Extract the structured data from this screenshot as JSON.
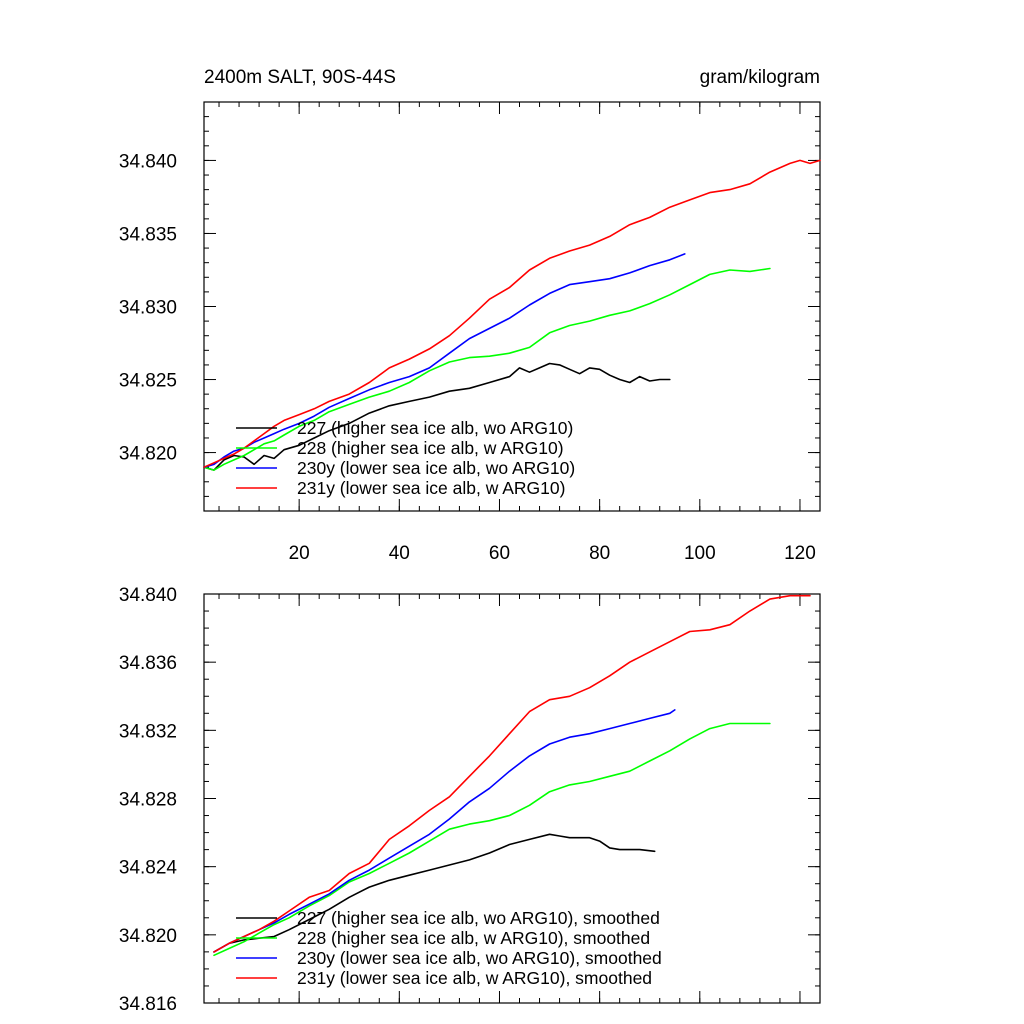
{
  "chart_data": [
    {
      "type": "line",
      "title_left": "2400m SALT, 90S-44S",
      "title_right": "gram/kilogram",
      "xlim": [
        1,
        124
      ],
      "ylim": [
        34.816,
        34.844
      ],
      "x_major_ticks": [
        20,
        40,
        60,
        80,
        100,
        120
      ],
      "x_tick_labels": [
        "20",
        "40",
        "60",
        "80",
        "100",
        "120"
      ],
      "y_major_ticks": [
        34.82,
        34.825,
        34.83,
        34.835,
        34.84
      ],
      "y_tick_labels": [
        "34.820",
        "34.825",
        "34.830",
        "34.835",
        "34.840"
      ],
      "x_minor_step": 4,
      "y_minor_step": 0.001,
      "legend_position": "bottom-left",
      "series": [
        {
          "name": "227 (higher sea ice alb, wo ARG10)",
          "color": "#000000",
          "x": [
            1,
            3,
            5,
            7,
            9,
            11,
            13,
            15,
            17,
            20,
            23,
            26,
            30,
            34,
            38,
            42,
            46,
            50,
            54,
            58,
            62,
            64,
            66,
            68,
            70,
            72,
            74,
            76,
            78,
            80,
            82,
            84,
            86,
            88,
            90,
            92,
            94
          ],
          "y": [
            34.819,
            34.8188,
            34.8195,
            34.8198,
            34.8197,
            34.8192,
            34.8198,
            34.8196,
            34.8202,
            34.8205,
            34.821,
            34.8215,
            34.822,
            34.8227,
            34.8232,
            34.8235,
            34.8238,
            34.8242,
            34.8244,
            34.8248,
            34.8252,
            34.8258,
            34.8255,
            34.8258,
            34.8261,
            34.826,
            34.8257,
            34.8254,
            34.8258,
            34.8257,
            34.8253,
            34.825,
            34.8248,
            34.8252,
            34.8249,
            34.825,
            34.825
          ]
        },
        {
          "name": "228 (higher sea ice alb, w ARG10)",
          "color": "#00ff00",
          "x": [
            1,
            3,
            5,
            7,
            9,
            11,
            13,
            15,
            17,
            20,
            23,
            26,
            30,
            34,
            38,
            42,
            46,
            50,
            54,
            58,
            62,
            66,
            70,
            74,
            78,
            82,
            86,
            90,
            94,
            98,
            102,
            106,
            110,
            114
          ],
          "y": [
            34.819,
            34.8188,
            34.8192,
            34.8195,
            34.8198,
            34.8202,
            34.8206,
            34.8208,
            34.8212,
            34.8218,
            34.8222,
            34.8228,
            34.8233,
            34.8238,
            34.8242,
            34.8248,
            34.8256,
            34.8262,
            34.8265,
            34.8266,
            34.8268,
            34.8272,
            34.8282,
            34.8287,
            34.829,
            34.8294,
            34.8297,
            34.8302,
            34.8308,
            34.8315,
            34.8322,
            34.8325,
            34.8324,
            34.8326
          ]
        },
        {
          "name": "230y (lower sea ice alb, wo ARG10)",
          "color": "#0000ff",
          "x": [
            1,
            3,
            5,
            7,
            9,
            11,
            13,
            15,
            17,
            20,
            23,
            26,
            30,
            34,
            38,
            42,
            46,
            50,
            54,
            58,
            62,
            66,
            70,
            74,
            78,
            82,
            86,
            90,
            94,
            97
          ],
          "y": [
            34.819,
            34.8192,
            34.8197,
            34.8201,
            34.8203,
            34.8207,
            34.821,
            34.8213,
            34.8216,
            34.822,
            34.8225,
            34.8231,
            34.8237,
            34.8243,
            34.8248,
            34.8252,
            34.8258,
            34.8268,
            34.8278,
            34.8285,
            34.8292,
            34.8301,
            34.8309,
            34.8315,
            34.8317,
            34.8319,
            34.8323,
            34.8328,
            34.8332,
            34.8336
          ]
        },
        {
          "name": "231y (lower sea ice alb, w ARG10)",
          "color": "#ff0000",
          "x": [
            1,
            3,
            5,
            7,
            9,
            11,
            13,
            15,
            17,
            20,
            23,
            26,
            30,
            34,
            38,
            42,
            46,
            50,
            54,
            58,
            62,
            66,
            70,
            74,
            78,
            82,
            86,
            90,
            94,
            98,
            102,
            106,
            110,
            114,
            118,
            120,
            122,
            124
          ],
          "y": [
            34.819,
            34.8193,
            34.8196,
            34.8199,
            34.8203,
            34.8208,
            34.8213,
            34.8218,
            34.8222,
            34.8226,
            34.823,
            34.8235,
            34.824,
            34.8248,
            34.8258,
            34.8264,
            34.8271,
            34.828,
            34.8292,
            34.8305,
            34.8313,
            34.8325,
            34.8333,
            34.8338,
            34.8342,
            34.8348,
            34.8356,
            34.8361,
            34.8368,
            34.8373,
            34.8378,
            34.838,
            34.8384,
            34.8392,
            34.8398,
            34.84,
            34.8398,
            34.84
          ]
        }
      ]
    },
    {
      "type": "line",
      "xlim": [
        1,
        124
      ],
      "ylim": [
        34.816,
        34.84
      ],
      "x_major_ticks": [
        20,
        40,
        60,
        80,
        100,
        120
      ],
      "y_major_ticks": [
        34.816,
        34.82,
        34.824,
        34.828,
        34.832,
        34.836,
        34.84
      ],
      "y_tick_labels": [
        "34.816",
        "34.820",
        "34.824",
        "34.828",
        "34.832",
        "34.836",
        "34.840"
      ],
      "x_minor_step": 4,
      "y_minor_step": 0.001,
      "legend_position": "bottom-left",
      "series": [
        {
          "name": "227 (higher sea ice alb, wo ARG10), smoothed",
          "color": "#000000",
          "x": [
            3,
            6,
            9,
            12,
            15,
            18,
            22,
            26,
            30,
            34,
            38,
            42,
            46,
            50,
            54,
            58,
            62,
            66,
            70,
            72,
            74,
            76,
            78,
            80,
            82,
            84,
            86,
            88,
            91
          ],
          "y": [
            34.819,
            34.8195,
            34.8197,
            34.8198,
            34.8199,
            34.8203,
            34.8209,
            34.8215,
            34.8222,
            34.8228,
            34.8232,
            34.8235,
            34.8238,
            34.8241,
            34.8244,
            34.8248,
            34.8253,
            34.8256,
            34.8259,
            34.8258,
            34.8257,
            34.8257,
            34.8257,
            34.8255,
            34.8251,
            34.825,
            34.825,
            34.825,
            34.8249
          ]
        },
        {
          "name": "228 (higher sea ice alb, w ARG10), smoothed",
          "color": "#00ff00",
          "x": [
            3,
            6,
            9,
            12,
            15,
            18,
            22,
            26,
            30,
            34,
            38,
            42,
            46,
            50,
            54,
            58,
            62,
            66,
            70,
            74,
            78,
            82,
            86,
            90,
            94,
            98,
            102,
            106,
            110,
            114
          ],
          "y": [
            34.8188,
            34.8192,
            34.8196,
            34.8201,
            34.8206,
            34.821,
            34.8217,
            34.8223,
            34.8231,
            34.8236,
            34.8242,
            34.8248,
            34.8255,
            34.8262,
            34.8265,
            34.8267,
            34.827,
            34.8276,
            34.8284,
            34.8288,
            34.829,
            34.8293,
            34.8296,
            34.8302,
            34.8308,
            34.8315,
            34.8321,
            34.8324,
            34.8324,
            34.8324
          ]
        },
        {
          "name": "230y (lower sea ice alb, wo ARG10), smoothed",
          "color": "#0000ff",
          "x": [
            3,
            6,
            9,
            12,
            15,
            18,
            22,
            26,
            30,
            34,
            38,
            42,
            46,
            50,
            54,
            58,
            62,
            66,
            70,
            74,
            78,
            82,
            86,
            90,
            94,
            95
          ],
          "y": [
            34.819,
            34.8195,
            34.8199,
            34.8203,
            34.8207,
            34.8212,
            34.8218,
            34.8224,
            34.8232,
            34.8238,
            34.8245,
            34.8252,
            34.8259,
            34.8268,
            34.8278,
            34.8286,
            34.8296,
            34.8305,
            34.8312,
            34.8316,
            34.8318,
            34.8321,
            34.8324,
            34.8327,
            34.833,
            34.8332
          ]
        },
        {
          "name": "231y (lower sea ice alb, w ARG10), smoothed",
          "color": "#ff0000",
          "x": [
            3,
            6,
            9,
            12,
            15,
            18,
            22,
            26,
            30,
            34,
            38,
            42,
            46,
            50,
            54,
            58,
            62,
            66,
            70,
            74,
            78,
            82,
            86,
            90,
            94,
            98,
            102,
            106,
            110,
            114,
            118,
            120,
            122
          ],
          "y": [
            34.819,
            34.8195,
            34.8199,
            34.8203,
            34.8208,
            34.8214,
            34.8222,
            34.8226,
            34.8236,
            34.8242,
            34.8256,
            34.8264,
            34.8273,
            34.8281,
            34.8293,
            34.8305,
            34.8318,
            34.8331,
            34.8338,
            34.834,
            34.8345,
            34.8352,
            34.836,
            34.8366,
            34.8372,
            34.8378,
            34.8379,
            34.8382,
            34.839,
            34.8397,
            34.8399,
            34.8399,
            34.8399
          ]
        }
      ]
    }
  ]
}
